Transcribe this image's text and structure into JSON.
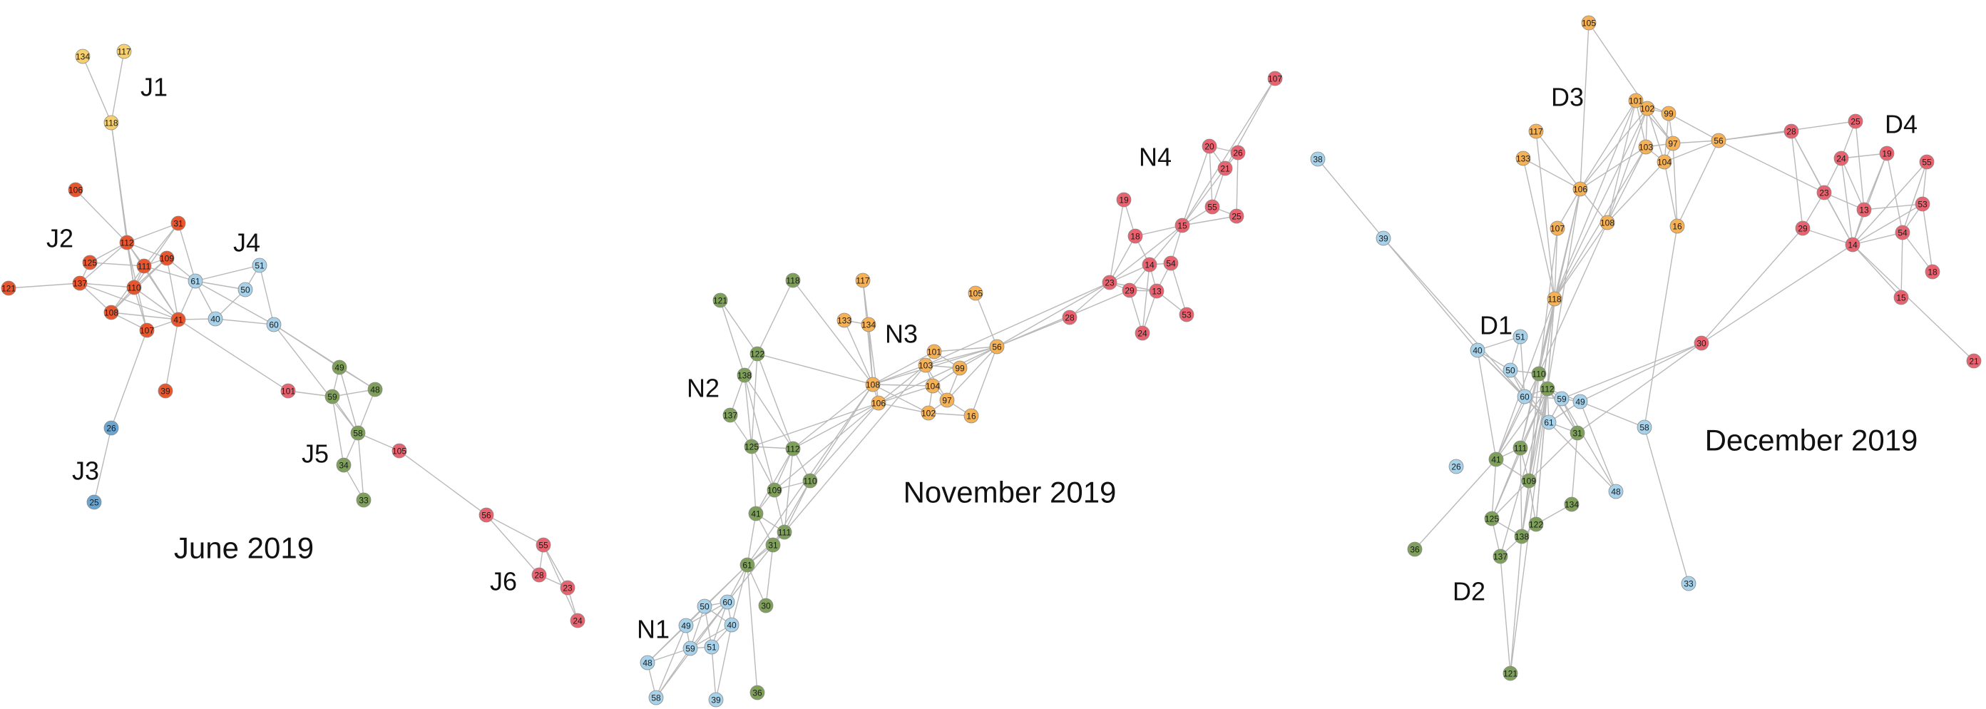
{
  "colors": {
    "red": "#e8636f",
    "orange_red": "#e9562d",
    "orange": "#f5b156",
    "yellow": "#f6cf6e",
    "green": "#7fa05b",
    "light_blue": "#a7d2ea",
    "blue": "#6ba5d2",
    "edge": "#b9b9b9"
  },
  "panels": [
    {
      "title": "June 2019",
      "groups": [
        {
          "label": "J1",
          "color": "yellow",
          "nodes": [
            "134",
            "117",
            "118"
          ]
        },
        {
          "label": "J2",
          "color": "orange_red",
          "nodes": [
            "106",
            "31",
            "112",
            "125",
            "109",
            "111",
            "121",
            "137",
            "110",
            "108",
            "107",
            "41",
            "39"
          ]
        },
        {
          "label": "J3",
          "color": "blue",
          "nodes": [
            "26",
            "25"
          ]
        },
        {
          "label": "J4",
          "color": "light_blue",
          "nodes": [
            "51",
            "61",
            "50",
            "40",
            "60"
          ]
        },
        {
          "label": "J5",
          "color": "green",
          "nodes": [
            "49",
            "59",
            "48",
            "58",
            "34",
            "33"
          ]
        },
        {
          "label": "J6",
          "color": "red",
          "nodes": [
            "101",
            "105",
            "56",
            "55",
            "28",
            "23",
            "24"
          ]
        }
      ]
    },
    {
      "title": "November 2019",
      "groups": [
        {
          "label": "N1",
          "color": "light_blue",
          "nodes": [
            "50",
            "60",
            "49",
            "40",
            "59",
            "51",
            "48",
            "58",
            "39"
          ]
        },
        {
          "label": "N2",
          "color": "green",
          "nodes": [
            "118",
            "121",
            "122",
            "138",
            "137",
            "125",
            "112",
            "109",
            "110",
            "41",
            "111",
            "31",
            "61",
            "30",
            "36"
          ]
        },
        {
          "label": "N3",
          "color": "orange",
          "nodes": [
            "117",
            "133",
            "134",
            "105",
            "101",
            "56",
            "103",
            "99",
            "108",
            "104",
            "106",
            "97",
            "102",
            "16"
          ]
        },
        {
          "label": "N4",
          "color": "red",
          "nodes": [
            "107",
            "20",
            "26",
            "21",
            "19",
            "55",
            "25",
            "15",
            "18",
            "54",
            "14",
            "23",
            "29",
            "13",
            "28",
            "24",
            "53"
          ]
        }
      ]
    },
    {
      "title": "December 2019",
      "groups": [
        {
          "label": "D1",
          "color": "light_blue",
          "nodes": [
            "38",
            "39",
            "51",
            "40",
            "50",
            "60",
            "59",
            "49",
            "61",
            "58",
            "26",
            "48",
            "33"
          ]
        },
        {
          "label": "D2",
          "color": "green",
          "nodes": [
            "110",
            "112",
            "31",
            "41",
            "111",
            "109",
            "134",
            "125",
            "122",
            "138",
            "137",
            "36",
            "121"
          ]
        },
        {
          "label": "D3",
          "color": "orange",
          "nodes": [
            "105",
            "117",
            "101",
            "102",
            "99",
            "133",
            "103",
            "97",
            "104",
            "56",
            "106",
            "107",
            "108",
            "16",
            "118"
          ]
        },
        {
          "label": "D4",
          "color": "red",
          "nodes": [
            "28",
            "25",
            "24",
            "19",
            "55",
            "23",
            "13",
            "53",
            "29",
            "14",
            "54",
            "18",
            "15",
            "30",
            "21"
          ]
        }
      ]
    }
  ]
}
